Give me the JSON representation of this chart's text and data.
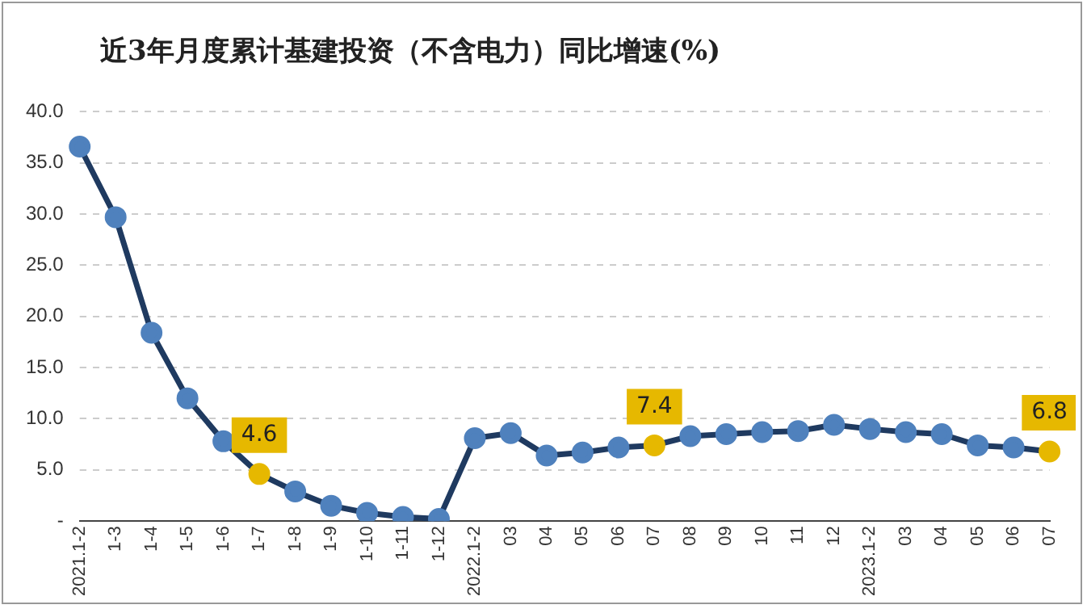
{
  "chart_data": {
    "type": "line",
    "title": "近3年月度累计基建投资（不含电力）同比增速(%)",
    "categories": [
      "2021.1-2",
      "1-3",
      "1-4",
      "1-5",
      "1-6",
      "1-7",
      "1-8",
      "1-9",
      "1-10",
      "1-11",
      "1-12",
      "2022.1-2",
      "03",
      "04",
      "05",
      "06",
      "07",
      "08",
      "09",
      "10",
      "11",
      "12",
      "2023.1-2",
      "03",
      "04",
      "05",
      "06",
      "07"
    ],
    "series": [
      {
        "color": "#1f3a60",
        "values": [
          36.6,
          29.7,
          18.4,
          12.0,
          7.8,
          4.6,
          2.9,
          1.5,
          0.8,
          0.4,
          0.2,
          8.1,
          8.6,
          6.4,
          6.7,
          7.2,
          7.4,
          8.3,
          8.5,
          8.7,
          8.8,
          9.4,
          9.0,
          8.7,
          8.5,
          7.4,
          7.2,
          6.8
        ],
        "colors": [
          "#4f81bd",
          "#4f81bd",
          "#4f81bd",
          "#4f81bd",
          "#4f81bd",
          "#e6b800",
          "#4f81bd",
          "#4f81bd",
          "#4f81bd",
          "#4f81bd",
          "#4f81bd",
          "#4f81bd",
          "#4f81bd",
          "#4f81bd",
          "#4f81bd",
          "#4f81bd",
          "#e6b800",
          "#4f81bd",
          "#4f81bd",
          "#4f81bd",
          "#4f81bd",
          "#4f81bd",
          "#4f81bd",
          "#4f81bd",
          "#4f81bd",
          "#4f81bd",
          "#4f81bd",
          "#e6b800"
        ],
        "value_labels": [
          null,
          null,
          null,
          null,
          null,
          "4.6",
          null,
          null,
          null,
          null,
          null,
          null,
          null,
          null,
          null,
          null,
          "7.4",
          null,
          null,
          null,
          null,
          null,
          null,
          null,
          null,
          null,
          null,
          "6.8"
        ]
      }
    ],
    "ylim": [
      0,
      40
    ],
    "yticks": [
      {
        "value": 0,
        "label": "-"
      },
      {
        "value": 5,
        "label": "5.0"
      },
      {
        "value": 10,
        "label": "10.0"
      },
      {
        "value": 15,
        "label": "15.0"
      },
      {
        "value": 20,
        "label": "20.0"
      },
      {
        "value": 25,
        "label": "25.0"
      },
      {
        "value": 30,
        "label": "30.0"
      },
      {
        "value": 35,
        "label": "35.0"
      },
      {
        "value": 40,
        "label": "40.0"
      }
    ],
    "grid": "y",
    "legend": false,
    "marker": "circle",
    "line_style": "solid"
  }
}
